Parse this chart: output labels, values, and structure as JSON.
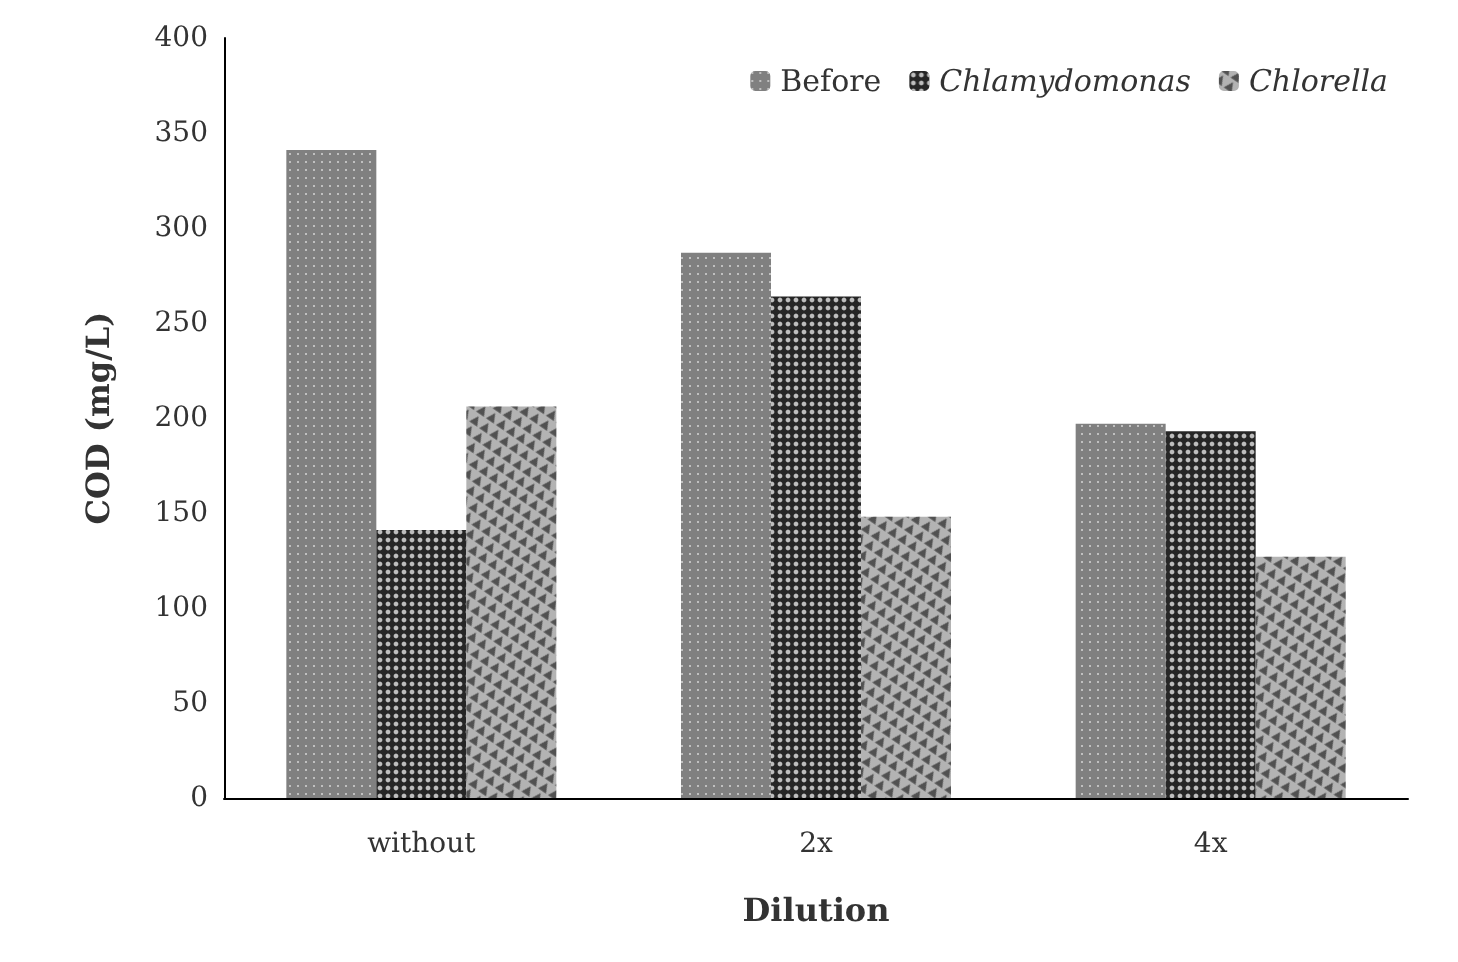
{
  "chart_data": {
    "type": "bar",
    "xlabel": "Dilution",
    "ylabel": "COD (mg/L)",
    "categories": [
      "without",
      "2x",
      "4x"
    ],
    "series": [
      {
        "name": "Before",
        "color": "#808080",
        "values": [
          341,
          287,
          197
        ]
      },
      {
        "name": "Chlamydomonas",
        "color": "#262626",
        "values": [
          141,
          264,
          193
        ]
      },
      {
        "name": "Chlorella",
        "color": "#b3b3b3",
        "values": [
          206,
          148,
          127
        ]
      }
    ],
    "ylim": [
      0,
      400
    ],
    "yticks": [
      0,
      50,
      100,
      150,
      200,
      250,
      300,
      350,
      400
    ],
    "grid": false,
    "legend": "top right"
  }
}
